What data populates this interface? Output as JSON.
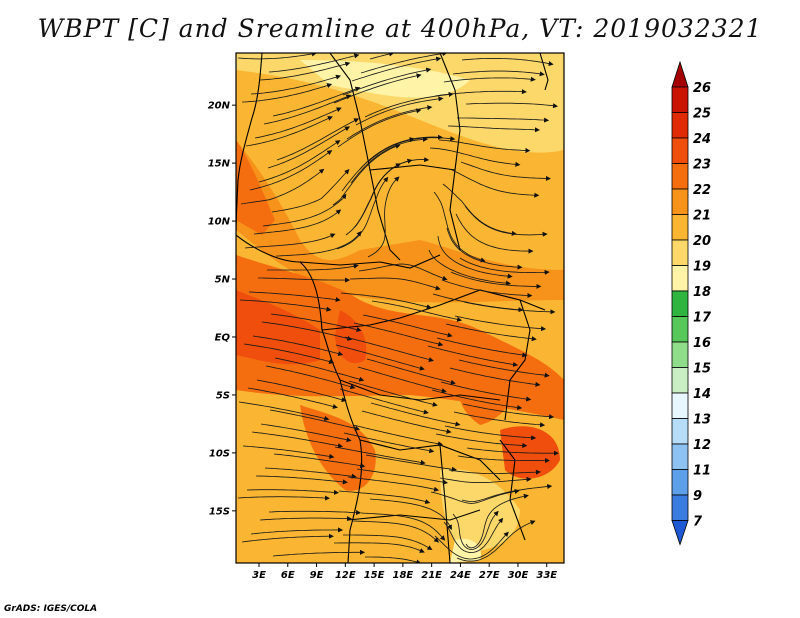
{
  "title": "WBPT [C] and Sreamline at 400hPa, VT: 2019032321",
  "map": {
    "variable": "WBPT",
    "units": "C",
    "level": "400hPa",
    "valid_time": "2019032321",
    "lat_labels": [
      "20N",
      "15N",
      "10N",
      "5N",
      "EQ",
      "5S",
      "10S",
      "15S"
    ],
    "lat_values": [
      20,
      15,
      10,
      5,
      0,
      -5,
      -10,
      -15
    ],
    "lon_labels": [
      "3E",
      "6E",
      "9E",
      "12E",
      "15E",
      "18E",
      "21E",
      "24E",
      "27E",
      "30E",
      "33E"
    ],
    "lon_values": [
      3,
      6,
      9,
      12,
      15,
      18,
      21,
      24,
      27,
      30,
      33
    ],
    "lat_range": [
      -19.5,
      24.5
    ],
    "lon_range": [
      0.6,
      34.8
    ]
  },
  "colorbar": {
    "labels": [
      "26",
      "25",
      "24",
      "23",
      "22",
      "21",
      "20",
      "19",
      "18",
      "17",
      "16",
      "15",
      "14",
      "13",
      "12",
      "11",
      "9",
      "7"
    ],
    "colors": [
      "#a50000",
      "#c81400",
      "#e02a00",
      "#ef4e0c",
      "#f46e10",
      "#f7921a",
      "#fab632",
      "#fcd86a",
      "#fff3a8",
      "#2fb540",
      "#56c95a",
      "#8fdc8a",
      "#c9eec3",
      "#e8f6fd",
      "#b6dcf8",
      "#8ec2f2",
      "#5d9fe8",
      "#3a7ce0",
      "#1f5ad4"
    ],
    "top_arrow_color": "#a50000",
    "bottom_arrow_color": "#1f5ad4"
  },
  "footer": "GrADS: IGES/COLA"
}
